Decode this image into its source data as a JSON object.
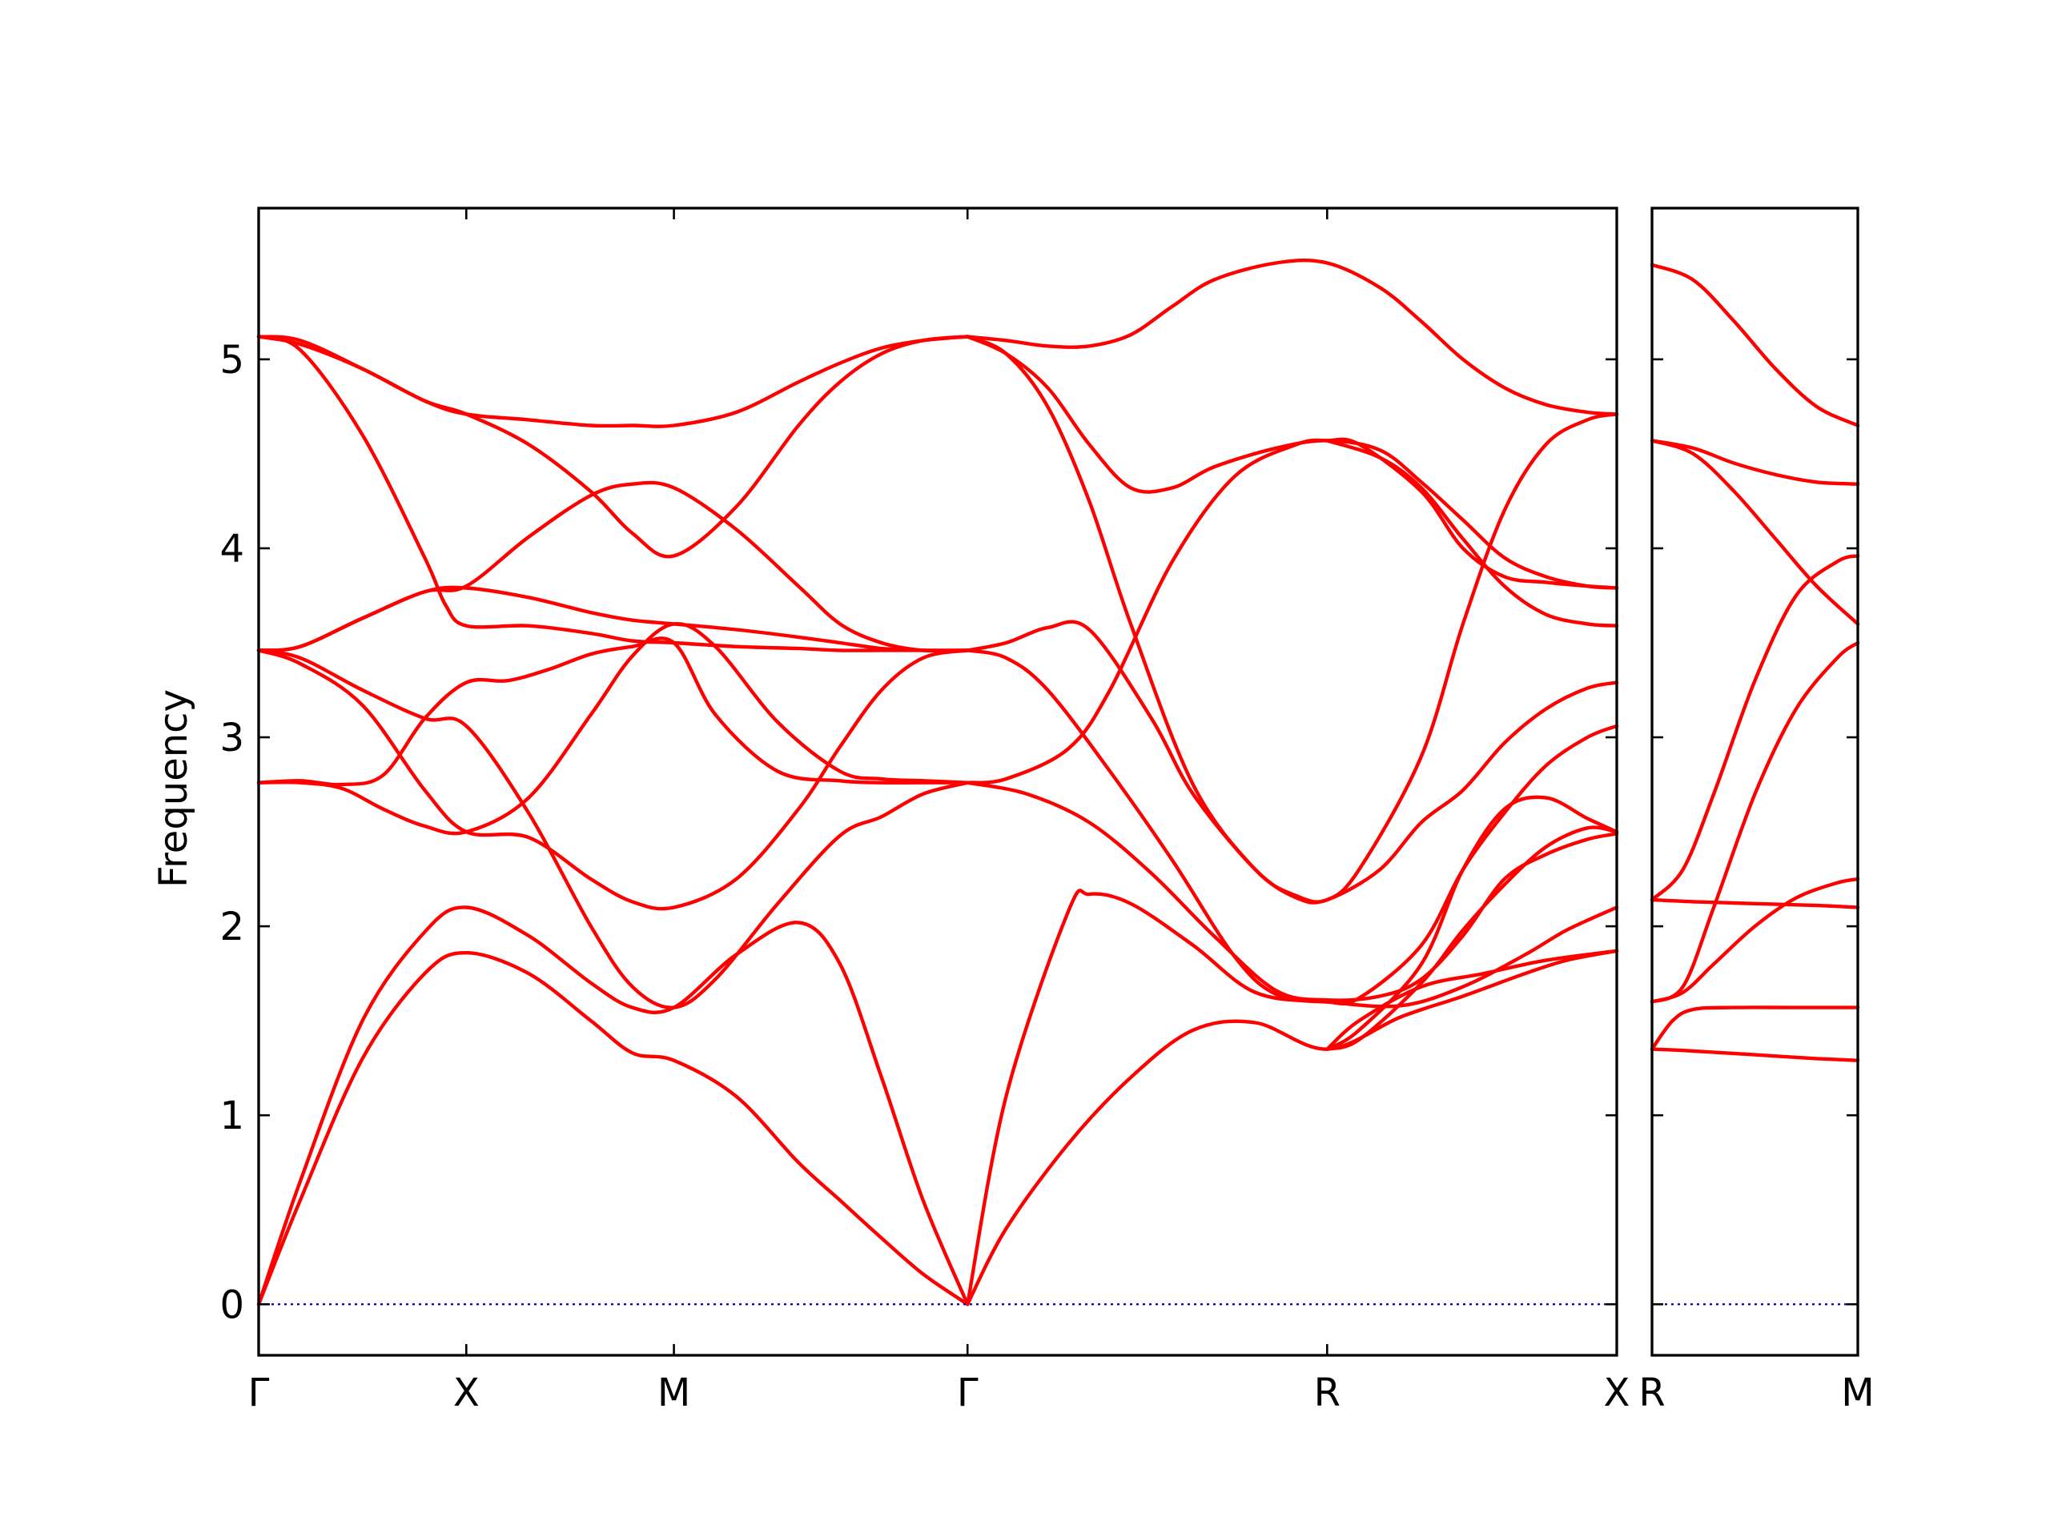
{
  "chart_data": {
    "type": "line",
    "ylabel": "Frequency",
    "ylim": [
      -0.27,
      5.8
    ],
    "y_ticks": [
      0,
      1,
      2,
      3,
      4,
      5
    ],
    "line_color": "#ff0000",
    "zero_line_color": "#0000aa",
    "panels": [
      {
        "name": "main",
        "xlim": [
          0,
          6.541
        ],
        "ticks": [
          {
            "label": "Γ",
            "x": 0
          },
          {
            "label": "X",
            "x": 1
          },
          {
            "label": "M",
            "x": 2
          },
          {
            "label": "Γ",
            "x": 3.414
          },
          {
            "label": "R",
            "x": 5.146
          },
          {
            "label": "X",
            "x": 6.541
          }
        ],
        "series": [
          {
            "x": [
              0,
              0.2,
              0.5,
              0.8,
              1.0,
              1.3,
              1.6,
              1.8,
              2.0,
              2.3,
              2.6,
              2.8,
              3.0,
              3.2,
              3.414
            ],
            "values": [
              0,
              0.55,
              1.3,
              1.75,
              1.86,
              1.75,
              1.5,
              1.33,
              1.29,
              1.1,
              0.75,
              0.55,
              0.35,
              0.16,
              0
            ]
          },
          {
            "x": [
              0,
              0.2,
              0.5,
              0.8,
              1.0,
              1.3,
              1.6,
              1.8,
              2.0,
              2.3,
              2.6,
              2.8,
              3.0,
              3.2,
              3.414
            ],
            "values": [
              0,
              0.65,
              1.5,
              1.97,
              2.1,
              1.95,
              1.7,
              1.57,
              1.57,
              1.85,
              2.02,
              1.8,
              1.2,
              0.55,
              0
            ]
          },
          {
            "x": [
              0,
              0.2,
              0.4,
              0.6,
              0.8,
              1.0,
              1.2,
              1.4,
              1.6,
              1.8,
              2.0,
              2.2,
              2.5,
              2.8,
              3.0,
              3.2,
              3.414
            ],
            "values": [
              2.76,
              2.77,
              2.75,
              2.8,
              3.1,
              3.29,
              3.3,
              3.36,
              3.44,
              3.48,
              3.5,
              3.12,
              2.82,
              2.77,
              2.76,
              2.76,
              2.76
            ]
          },
          {
            "x": [
              0,
              0.2,
              0.4,
              0.6,
              0.8,
              1.0,
              1.3,
              1.6,
              1.8,
              2.0,
              2.2,
              2.5,
              2.8,
              3.0,
              3.2,
              3.414
            ],
            "values": [
              2.76,
              2.76,
              2.73,
              2.62,
              2.53,
              2.5,
              2.68,
              3.12,
              3.43,
              3.6,
              3.48,
              3.08,
              2.82,
              2.78,
              2.77,
              2.76
            ]
          },
          {
            "x": [
              0,
              0.2,
              0.5,
              0.8,
              1.0,
              1.3,
              1.6,
              1.8,
              2.0,
              2.2,
              2.5,
              2.8,
              3.0,
              3.2,
              3.414
            ],
            "values": [
              3.46,
              3.42,
              3.25,
              3.1,
              3.06,
              2.6,
              2.0,
              1.68,
              1.57,
              1.72,
              2.12,
              2.48,
              2.58,
              2.7,
              2.76
            ]
          },
          {
            "x": [
              0,
              0.2,
              0.5,
              0.8,
              1.0,
              1.3,
              1.6,
              1.8,
              2.0,
              2.3,
              2.6,
              2.8,
              3.0,
              3.2,
              3.414
            ],
            "values": [
              3.46,
              3.39,
              3.17,
              2.72,
              2.5,
              2.47,
              2.25,
              2.13,
              2.1,
              2.25,
              2.62,
              2.95,
              3.25,
              3.42,
              3.46
            ]
          },
          {
            "x": [
              0,
              0.2,
              0.5,
              0.8,
              1.0,
              1.3,
              1.6,
              1.8,
              2.0,
              2.3,
              2.6,
              2.8,
              3.0,
              3.2,
              3.414
            ],
            "values": [
              3.46,
              3.48,
              3.63,
              3.77,
              3.79,
              3.74,
              3.66,
              3.62,
              3.6,
              3.57,
              3.53,
              3.5,
              3.47,
              3.46,
              3.46
            ]
          },
          {
            "x": [
              0,
              0.2,
              0.5,
              0.8,
              0.9,
              1.0,
              1.3,
              1.6,
              1.8,
              2.0,
              2.3,
              2.6,
              2.8,
              3.0,
              3.2,
              3.414
            ],
            "values": [
              5.12,
              5.05,
              4.6,
              3.95,
              3.7,
              3.59,
              3.59,
              3.55,
              3.51,
              3.5,
              3.48,
              3.47,
              3.46,
              3.46,
              3.46,
              3.46
            ]
          },
          {
            "x": [
              0,
              0.2,
              0.5,
              0.8,
              1.0,
              1.3,
              1.6,
              1.8,
              2.0,
              2.3,
              2.6,
              2.8,
              3.0,
              3.2,
              3.414
            ],
            "values": [
              5.12,
              5.08,
              4.95,
              4.78,
              4.71,
              4.55,
              4.3,
              4.08,
              3.96,
              4.22,
              4.65,
              4.88,
              5.03,
              5.1,
              5.12
            ]
          },
          {
            "x": [
              0,
              0.2,
              0.5,
              0.8,
              1.0,
              1.3,
              1.6,
              1.8,
              2.0,
              2.3,
              2.6,
              2.8,
              3.0,
              3.2,
              3.414
            ],
            "values": [
              5.12,
              5.1,
              4.95,
              4.78,
              4.71,
              4.68,
              4.65,
              4.65,
              4.65,
              4.72,
              4.88,
              4.98,
              5.06,
              5.1,
              5.12
            ]
          },
          {
            "x": [
              0,
              0.2,
              0.5,
              0.8,
              1.0,
              1.3,
              1.6,
              1.8,
              2.0,
              2.3,
              2.6,
              2.8,
              3.0,
              3.2,
              3.414
            ],
            "values": [
              3.46,
              3.48,
              3.63,
              3.77,
              3.8,
              4.06,
              4.28,
              4.34,
              4.32,
              4.1,
              3.8,
              3.6,
              3.5,
              3.46,
              3.46
            ]
          },
          {
            "x": [
              3.414,
              3.6,
              3.9,
              4.2,
              4.5,
              4.8,
              5.146,
              5.5,
              5.8,
              6.1,
              6.3,
              6.541
            ],
            "values": [
              0,
              0.4,
              0.85,
              1.2,
              1.45,
              1.49,
              1.35,
              1.52,
              1.63,
              1.75,
              1.82,
              1.87
            ]
          },
          {
            "x": [
              3.414,
              3.6,
              3.9,
              4.0,
              4.2,
              4.5,
              4.8,
              5.146,
              5.5,
              5.8,
              6.1,
              6.3,
              6.541
            ],
            "values": [
              0,
              1.1,
              2.08,
              2.17,
              2.12,
              1.9,
              1.65,
              1.6,
              1.58,
              1.68,
              1.85,
              1.98,
              2.1
            ]
          },
          {
            "x": [
              3.414,
              3.7,
              4.0,
              4.3,
              4.6,
              4.9,
              5.146,
              5.4,
              5.6,
              5.8,
              6.0,
              6.2,
              6.4,
              6.541
            ],
            "values": [
              2.76,
              2.7,
              2.55,
              2.28,
              1.95,
              1.66,
              1.61,
              1.63,
              1.72,
              1.95,
              2.25,
              2.38,
              2.46,
              2.49
            ]
          },
          {
            "x": [
              3.414,
              3.6,
              3.8,
              4.1,
              4.4,
              4.7,
              4.9,
              5.146,
              5.3,
              5.6,
              5.8,
              6.0,
              6.2,
              6.4,
              6.541
            ],
            "values": [
              3.46,
              3.42,
              3.25,
              2.82,
              2.35,
              1.84,
              1.64,
              1.6,
              1.62,
              1.9,
              2.3,
              2.6,
              2.85,
              3.0,
              3.06
            ]
          },
          {
            "x": [
              3.414,
              3.6,
              3.9,
              4.1,
              4.4,
              4.7,
              5.0,
              5.146,
              5.3,
              5.6,
              5.8,
              6.0,
              6.2,
              6.4,
              6.541
            ],
            "values": [
              2.76,
              2.78,
              2.94,
              3.25,
              3.93,
              4.38,
              4.55,
              4.57,
              4.55,
              4.3,
              4.0,
              3.85,
              3.82,
              3.8,
              3.79
            ]
          },
          {
            "x": [
              3.414,
              3.6,
              3.8,
              4.0,
              4.3,
              4.5,
              4.8,
              5.0,
              5.146,
              5.4,
              5.6,
              5.8,
              6.0,
              6.2,
              6.4,
              6.541
            ],
            "values": [
              3.46,
              3.5,
              3.58,
              3.57,
              3.1,
              2.7,
              2.3,
              2.15,
              2.14,
              2.3,
              2.55,
              2.72,
              2.97,
              3.15,
              3.26,
              3.29
            ]
          },
          {
            "x": [
              3.414,
              3.6,
              3.8,
              4.0,
              4.2,
              4.4,
              4.6,
              4.9,
              5.146,
              5.4,
              5.6,
              5.8,
              6.0,
              6.2,
              6.4,
              6.541
            ],
            "values": [
              5.12,
              5.1,
              5.07,
              5.07,
              5.13,
              5.28,
              5.42,
              5.51,
              5.51,
              5.38,
              5.2,
              5.0,
              4.85,
              4.76,
              4.72,
              4.71
            ]
          },
          {
            "x": [
              3.414,
              3.6,
              3.8,
              4.0,
              4.2,
              4.4,
              4.6,
              4.9,
              5.146,
              5.4,
              5.6,
              5.8,
              6.0,
              6.2,
              6.4,
              6.541
            ],
            "values": [
              5.12,
              5.03,
              4.85,
              4.55,
              4.32,
              4.32,
              4.43,
              4.53,
              4.57,
              4.52,
              4.35,
              4.15,
              3.95,
              3.85,
              3.8,
              3.79
            ]
          },
          {
            "x": [
              3.414,
              3.6,
              3.8,
              4.0,
              4.2,
              4.5,
              4.8,
              5.0,
              5.146,
              5.3,
              5.6,
              5.8,
              6.0,
              6.2,
              6.4,
              6.541
            ],
            "values": [
              5.12,
              5.03,
              4.75,
              4.25,
              3.6,
              2.75,
              2.3,
              2.16,
              2.14,
              2.3,
              2.9,
              3.6,
              4.2,
              4.55,
              4.68,
              4.71
            ]
          },
          {
            "x": [
              5.146,
              5.4,
              5.6,
              5.8,
              6.0,
              6.2,
              6.4,
              6.541
            ],
            "values": [
              4.57,
              4.48,
              4.32,
              4.05,
              3.8,
              3.65,
              3.6,
              3.59
            ]
          },
          {
            "x": [
              5.146,
              5.3,
              5.6,
              5.8,
              6.0,
              6.2,
              6.4,
              6.541
            ],
            "values": [
              1.35,
              1.4,
              1.7,
              1.98,
              2.22,
              2.42,
              2.52,
              2.5
            ]
          },
          {
            "x": [
              5.146,
              5.3,
              5.6,
              5.8,
              6.0,
              6.2,
              6.4,
              6.541
            ],
            "values": [
              1.35,
              1.45,
              1.8,
              2.3,
              2.62,
              2.68,
              2.57,
              2.5
            ]
          },
          {
            "x": [
              5.146,
              5.3,
              5.6,
              5.9,
              6.2,
              6.541
            ],
            "values": [
              1.35,
              1.5,
              1.68,
              1.75,
              1.82,
              1.87
            ]
          }
        ]
      },
      {
        "name": "right",
        "xlim": [
          0,
          1
        ],
        "ticks": [
          {
            "label": "R",
            "x": 0
          },
          {
            "label": "M",
            "x": 1
          }
        ],
        "series": [
          {
            "x": [
              0,
              0.2,
              0.4,
              0.6,
              0.8,
              1.0
            ],
            "values": [
              5.5,
              5.42,
              5.2,
              4.95,
              4.75,
              4.65
            ]
          },
          {
            "x": [
              0,
              0.2,
              0.4,
              0.6,
              0.8,
              1.0
            ],
            "values": [
              4.57,
              4.53,
              4.45,
              4.39,
              4.35,
              4.34
            ]
          },
          {
            "x": [
              0,
              0.2,
              0.4,
              0.6,
              0.8,
              1.0
            ],
            "values": [
              4.57,
              4.5,
              4.3,
              4.05,
              3.8,
              3.6
            ]
          },
          {
            "x": [
              0,
              0.15,
              0.3,
              0.5,
              0.7,
              0.9,
              1.0
            ],
            "values": [
              2.14,
              2.3,
              2.7,
              3.3,
              3.75,
              3.93,
              3.96
            ]
          },
          {
            "x": [
              0,
              0.15,
              0.3,
              0.5,
              0.7,
              0.9,
              1.0
            ],
            "values": [
              1.6,
              1.68,
              2.1,
              2.7,
              3.15,
              3.42,
              3.5
            ]
          },
          {
            "x": [
              0,
              0.2,
              0.5,
              0.8,
              1.0
            ],
            "values": [
              2.14,
              2.13,
              2.12,
              2.11,
              2.1
            ]
          },
          {
            "x": [
              0,
              0.15,
              0.3,
              0.5,
              0.7,
              0.9,
              1.0
            ],
            "values": [
              1.6,
              1.65,
              1.8,
              2.0,
              2.15,
              2.23,
              2.25
            ]
          },
          {
            "x": [
              0,
              0.1,
              0.2,
              0.4,
              0.7,
              1.0
            ],
            "values": [
              1.35,
              1.5,
              1.56,
              1.57,
              1.57,
              1.57
            ]
          },
          {
            "x": [
              0,
              0.2,
              0.5,
              0.8,
              1.0
            ],
            "values": [
              1.35,
              1.34,
              1.32,
              1.3,
              1.29
            ]
          }
        ]
      }
    ]
  }
}
